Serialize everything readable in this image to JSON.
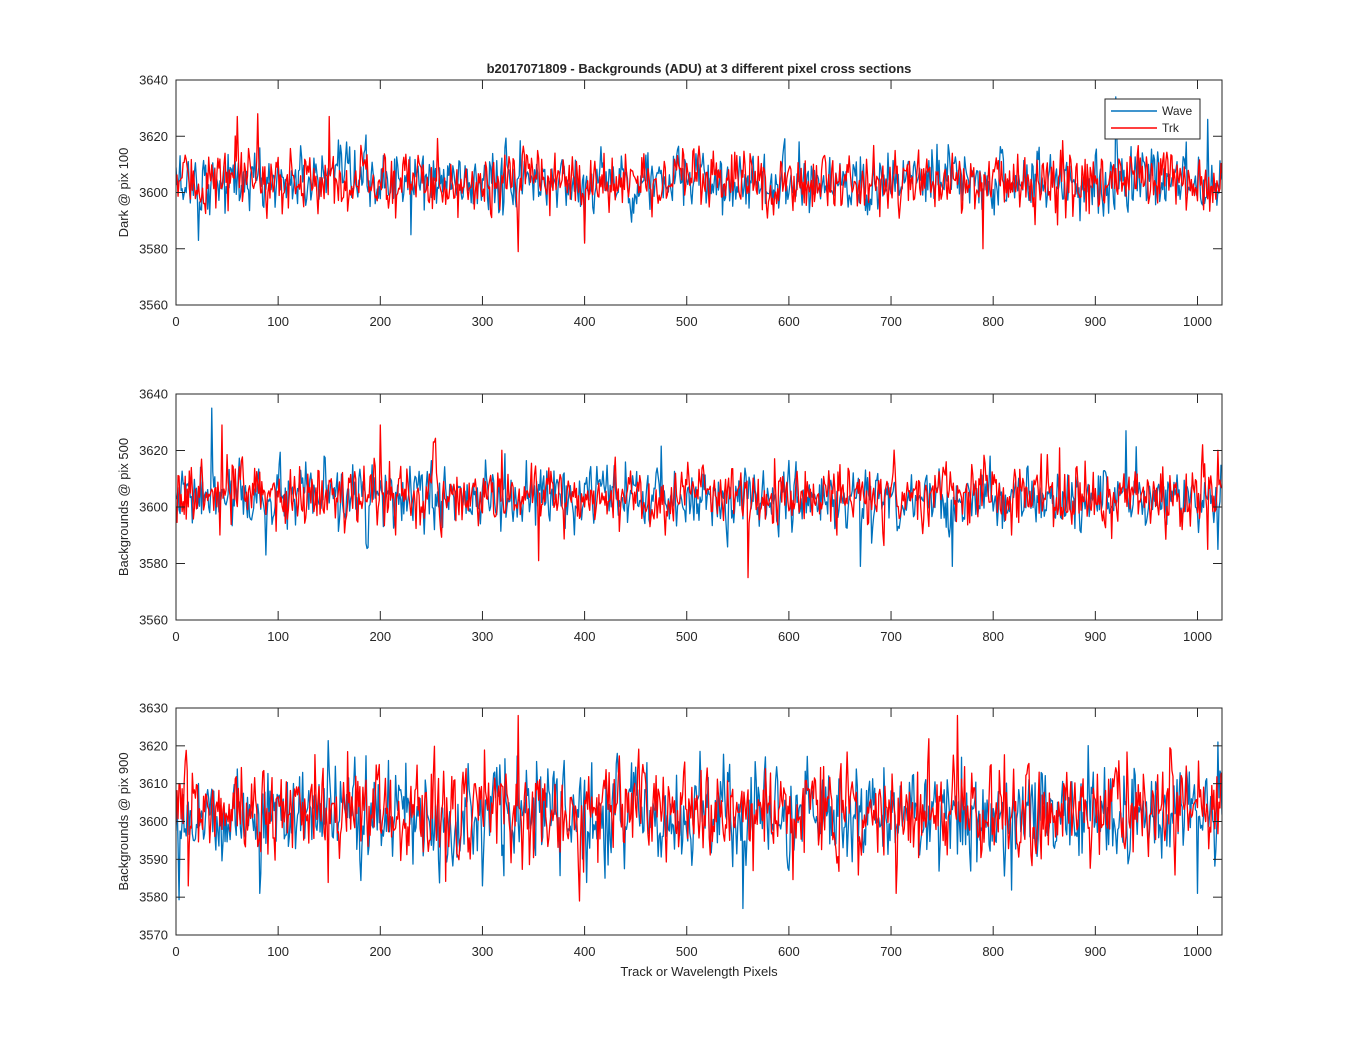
{
  "figure": {
    "title": "b2017071809 - Backgrounds (ADU) at 3 different pixel cross sections",
    "xlabel": "Track or Wavelength Pixels",
    "legend": [
      "Wave",
      "Trk"
    ],
    "colors": {
      "Wave": "#0072bd",
      "Trk": "#ff0000",
      "axes": "#262626",
      "background": "#ffffff"
    }
  },
  "chart_data": [
    {
      "type": "line",
      "title": "b2017071809 - Backgrounds (ADU) at 3 different pixel cross sections",
      "xlabel": "",
      "ylabel": "Dark @ pix 100",
      "xlim": [
        0,
        1024
      ],
      "ylim": [
        3560,
        3640
      ],
      "xticks": [
        0,
        100,
        200,
        300,
        400,
        500,
        600,
        700,
        800,
        900,
        1000
      ],
      "yticks": [
        3560,
        3580,
        3600,
        3620,
        3640
      ],
      "grid": false,
      "legend_position": "top-right",
      "series": [
        {
          "name": "Wave",
          "color": "#0072bd",
          "mean": 3604,
          "std": 6,
          "extremes": [
            [
              22,
              3583
            ],
            [
              230,
              3585
            ],
            [
              400,
              3583
            ],
            [
              610,
              3618
            ],
            [
              920,
              3634
            ],
            [
              1010,
              3626
            ]
          ]
        },
        {
          "name": "Trk",
          "color": "#ff0000",
          "mean": 3604,
          "std": 6,
          "extremes": [
            [
              60,
              3627
            ],
            [
              80,
              3628
            ],
            [
              335,
              3579
            ],
            [
              400,
              3582
            ],
            [
              790,
              3580
            ],
            [
              150,
              3627
            ]
          ]
        }
      ]
    },
    {
      "type": "line",
      "xlabel": "",
      "ylabel": "Backgrounds @ pix 500",
      "xlim": [
        0,
        1024
      ],
      "ylim": [
        3560,
        3640
      ],
      "xticks": [
        0,
        100,
        200,
        300,
        400,
        500,
        600,
        700,
        800,
        900,
        1000
      ],
      "yticks": [
        3560,
        3580,
        3600,
        3620,
        3640
      ],
      "grid": false,
      "series": [
        {
          "name": "Wave",
          "color": "#0072bd",
          "mean": 3603,
          "std": 6,
          "extremes": [
            [
              35,
              3635
            ],
            [
              88,
              3583
            ],
            [
              670,
              3579
            ],
            [
              760,
              3579
            ],
            [
              930,
              3627
            ],
            [
              1020,
              3585
            ]
          ]
        },
        {
          "name": "Trk",
          "color": "#ff0000",
          "mean": 3604,
          "std": 6,
          "extremes": [
            [
              45,
              3629
            ],
            [
              200,
              3629
            ],
            [
              560,
              3575
            ],
            [
              355,
              3581
            ],
            [
              1010,
              3585
            ]
          ]
        }
      ]
    },
    {
      "type": "line",
      "xlabel": "Track or Wavelength Pixels",
      "ylabel": "Backgrounds @ pix 900",
      "xlim": [
        0,
        1024
      ],
      "ylim": [
        3570,
        3630
      ],
      "xticks": [
        0,
        100,
        200,
        300,
        400,
        500,
        600,
        700,
        800,
        900,
        1000
      ],
      "yticks": [
        3570,
        3580,
        3590,
        3600,
        3610,
        3620,
        3630
      ],
      "grid": false,
      "series": [
        {
          "name": "Wave",
          "color": "#0072bd",
          "mean": 3602,
          "std": 7,
          "extremes": [
            [
              82,
              3581
            ],
            [
              555,
              3577
            ],
            [
              1000,
              3581
            ],
            [
              1020,
              3621
            ],
            [
              300,
              3583
            ]
          ]
        },
        {
          "name": "Trk",
          "color": "#ff0000",
          "mean": 3603,
          "std": 7,
          "extremes": [
            [
              335,
              3628
            ],
            [
              395,
              3579
            ],
            [
              765,
              3628
            ],
            [
              12,
              3583
            ],
            [
              705,
              3581
            ]
          ]
        }
      ]
    }
  ]
}
